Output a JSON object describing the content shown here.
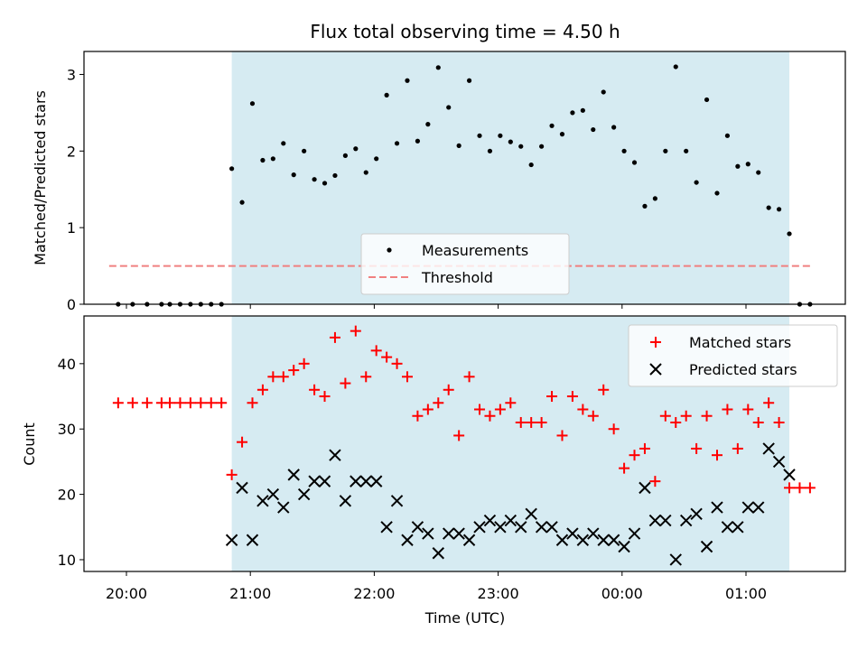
{
  "chart_data": [
    {
      "type": "scatter",
      "title": "Flux total observing time = 4.50 h",
      "ylabel": "Matched/Predicted stars",
      "xlabel": "",
      "ylim": [
        0,
        3.3
      ],
      "yticks": [
        "0",
        "1",
        "2",
        "3"
      ],
      "grid": false,
      "shaded_interval": [
        "20:51",
        "01:21"
      ],
      "shade_color": "#add8e6",
      "legend_location": "lower center",
      "series": [
        {
          "name": "Measurements",
          "color": "#000000",
          "marker": "dot",
          "points": [
            [
              "19:56",
              0
            ],
            [
              "20:03",
              0
            ],
            [
              "20:10",
              0
            ],
            [
              "20:17",
              0
            ],
            [
              "20:21",
              0
            ],
            [
              "20:26",
              0
            ],
            [
              "20:31",
              0
            ],
            [
              "20:36",
              0
            ],
            [
              "20:41",
              0
            ],
            [
              "20:46",
              0
            ],
            [
              "20:51",
              1.77
            ],
            [
              "20:56",
              1.33
            ],
            [
              "21:01",
              2.62
            ],
            [
              "21:06",
              1.88
            ],
            [
              "21:11",
              1.9
            ],
            [
              "21:16",
              2.1
            ],
            [
              "21:21",
              1.69
            ],
            [
              "21:26",
              2.0
            ],
            [
              "21:31",
              1.63
            ],
            [
              "21:36",
              1.58
            ],
            [
              "21:41",
              1.68
            ],
            [
              "21:46",
              1.94
            ],
            [
              "21:51",
              2.03
            ],
            [
              "21:56",
              1.72
            ],
            [
              "22:01",
              1.9
            ],
            [
              "22:06",
              2.73
            ],
            [
              "22:11",
              2.1
            ],
            [
              "22:16",
              2.92
            ],
            [
              "22:21",
              2.13
            ],
            [
              "22:26",
              2.35
            ],
            [
              "22:31",
              3.09
            ],
            [
              "22:36",
              2.57
            ],
            [
              "22:41",
              2.07
            ],
            [
              "22:46",
              2.92
            ],
            [
              "22:51",
              2.2
            ],
            [
              "22:56",
              2.0
            ],
            [
              "23:01",
              2.2
            ],
            [
              "23:06",
              2.12
            ],
            [
              "23:11",
              2.06
            ],
            [
              "23:16",
              1.82
            ],
            [
              "23:21",
              2.06
            ],
            [
              "23:26",
              2.33
            ],
            [
              "23:31",
              2.22
            ],
            [
              "23:36",
              2.5
            ],
            [
              "23:41",
              2.53
            ],
            [
              "23:46",
              2.28
            ],
            [
              "23:51",
              2.77
            ],
            [
              "23:56",
              2.31
            ],
            [
              "00:01",
              2.0
            ],
            [
              "00:06",
              1.85
            ],
            [
              "00:11",
              1.28
            ],
            [
              "00:16",
              1.38
            ],
            [
              "00:21",
              2.0
            ],
            [
              "00:26",
              3.1
            ],
            [
              "00:31",
              2.0
            ],
            [
              "00:36",
              1.59
            ],
            [
              "00:41",
              2.67
            ],
            [
              "00:46",
              1.45
            ],
            [
              "00:51",
              2.2
            ],
            [
              "00:56",
              1.8
            ],
            [
              "01:01",
              1.83
            ],
            [
              "01:06",
              1.72
            ],
            [
              "01:11",
              1.26
            ],
            [
              "01:16",
              1.24
            ],
            [
              "01:21",
              0.92
            ],
            [
              "01:26",
              0
            ],
            [
              "01:31",
              0
            ]
          ]
        },
        {
          "name": "Threshold",
          "color": "#f08080",
          "line_style": "dashed",
          "x": [
            "19:56",
            "01:31"
          ],
          "y": [
            0.5,
            0.5
          ]
        }
      ]
    },
    {
      "type": "scatter",
      "title": "",
      "ylabel": "Count",
      "xlabel": "Time (UTC)",
      "ylim": [
        8.2,
        47.3
      ],
      "yticks": [
        "10",
        "20",
        "30",
        "40"
      ],
      "xticks": [
        "20:00",
        "21:00",
        "22:00",
        "23:00",
        "00:00",
        "01:00"
      ],
      "grid": false,
      "shaded_interval": [
        "20:51",
        "01:21"
      ],
      "shade_color": "#add8e6",
      "legend_location": "upper right",
      "series": [
        {
          "name": "Matched stars",
          "color": "#ff0000",
          "marker": "plus",
          "points": [
            [
              "19:56",
              34
            ],
            [
              "20:03",
              34
            ],
            [
              "20:10",
              34
            ],
            [
              "20:17",
              34
            ],
            [
              "20:21",
              34
            ],
            [
              "20:26",
              34
            ],
            [
              "20:31",
              34
            ],
            [
              "20:36",
              34
            ],
            [
              "20:41",
              34
            ],
            [
              "20:46",
              34
            ],
            [
              "20:51",
              23
            ],
            [
              "20:56",
              28
            ],
            [
              "21:01",
              34
            ],
            [
              "21:06",
              36
            ],
            [
              "21:11",
              38
            ],
            [
              "21:16",
              38
            ],
            [
              "21:21",
              39
            ],
            [
              "21:26",
              40
            ],
            [
              "21:31",
              36
            ],
            [
              "21:36",
              35
            ],
            [
              "21:41",
              44
            ],
            [
              "21:46",
              37
            ],
            [
              "21:51",
              45
            ],
            [
              "21:56",
              38
            ],
            [
              "22:01",
              42
            ],
            [
              "22:06",
              41
            ],
            [
              "22:11",
              40
            ],
            [
              "22:16",
              38
            ],
            [
              "22:21",
              32
            ],
            [
              "22:26",
              33
            ],
            [
              "22:31",
              34
            ],
            [
              "22:36",
              36
            ],
            [
              "22:41",
              29
            ],
            [
              "22:46",
              38
            ],
            [
              "22:51",
              33
            ],
            [
              "22:56",
              32
            ],
            [
              "23:01",
              33
            ],
            [
              "23:06",
              34
            ],
            [
              "23:11",
              31
            ],
            [
              "23:16",
              31
            ],
            [
              "23:21",
              31
            ],
            [
              "23:26",
              35
            ],
            [
              "23:31",
              29
            ],
            [
              "23:36",
              35
            ],
            [
              "23:41",
              33
            ],
            [
              "23:46",
              32
            ],
            [
              "23:51",
              36
            ],
            [
              "23:56",
              30
            ],
            [
              "00:01",
              24
            ],
            [
              "00:06",
              26
            ],
            [
              "00:11",
              27
            ],
            [
              "00:16",
              22
            ],
            [
              "00:21",
              32
            ],
            [
              "00:26",
              31
            ],
            [
              "00:31",
              32
            ],
            [
              "00:36",
              27
            ],
            [
              "00:41",
              32
            ],
            [
              "00:46",
              26
            ],
            [
              "00:51",
              33
            ],
            [
              "00:56",
              27
            ],
            [
              "01:01",
              33
            ],
            [
              "01:06",
              31
            ],
            [
              "01:11",
              34
            ],
            [
              "01:16",
              31
            ],
            [
              "01:21",
              21
            ],
            [
              "01:26",
              21
            ],
            [
              "01:31",
              21
            ]
          ]
        },
        {
          "name": "Predicted stars",
          "color": "#000000",
          "marker": "x",
          "points": [
            [
              "20:51",
              13
            ],
            [
              "20:56",
              21
            ],
            [
              "21:01",
              13
            ],
            [
              "21:06",
              19
            ],
            [
              "21:11",
              20
            ],
            [
              "21:16",
              18
            ],
            [
              "21:21",
              23
            ],
            [
              "21:26",
              20
            ],
            [
              "21:31",
              22
            ],
            [
              "21:36",
              22
            ],
            [
              "21:41",
              26
            ],
            [
              "21:46",
              19
            ],
            [
              "21:51",
              22
            ],
            [
              "21:56",
              22
            ],
            [
              "22:01",
              22
            ],
            [
              "22:06",
              15
            ],
            [
              "22:11",
              19
            ],
            [
              "22:16",
              13
            ],
            [
              "22:21",
              15
            ],
            [
              "22:26",
              14
            ],
            [
              "22:31",
              11
            ],
            [
              "22:36",
              14
            ],
            [
              "22:41",
              14
            ],
            [
              "22:46",
              13
            ],
            [
              "22:51",
              15
            ],
            [
              "22:56",
              16
            ],
            [
              "23:01",
              15
            ],
            [
              "23:06",
              16
            ],
            [
              "23:11",
              15
            ],
            [
              "23:16",
              17
            ],
            [
              "23:21",
              15
            ],
            [
              "23:26",
              15
            ],
            [
              "23:31",
              13
            ],
            [
              "23:36",
              14
            ],
            [
              "23:41",
              13
            ],
            [
              "23:46",
              14
            ],
            [
              "23:51",
              13
            ],
            [
              "23:56",
              13
            ],
            [
              "00:01",
              12
            ],
            [
              "00:06",
              14
            ],
            [
              "00:11",
              21
            ],
            [
              "00:16",
              16
            ],
            [
              "00:21",
              16
            ],
            [
              "00:26",
              10
            ],
            [
              "00:31",
              16
            ],
            [
              "00:36",
              17
            ],
            [
              "00:41",
              12
            ],
            [
              "00:46",
              18
            ],
            [
              "00:51",
              15
            ],
            [
              "00:56",
              15
            ],
            [
              "01:01",
              18
            ],
            [
              "01:06",
              18
            ],
            [
              "01:11",
              27
            ],
            [
              "01:16",
              25
            ],
            [
              "01:21",
              23
            ]
          ]
        }
      ]
    }
  ]
}
